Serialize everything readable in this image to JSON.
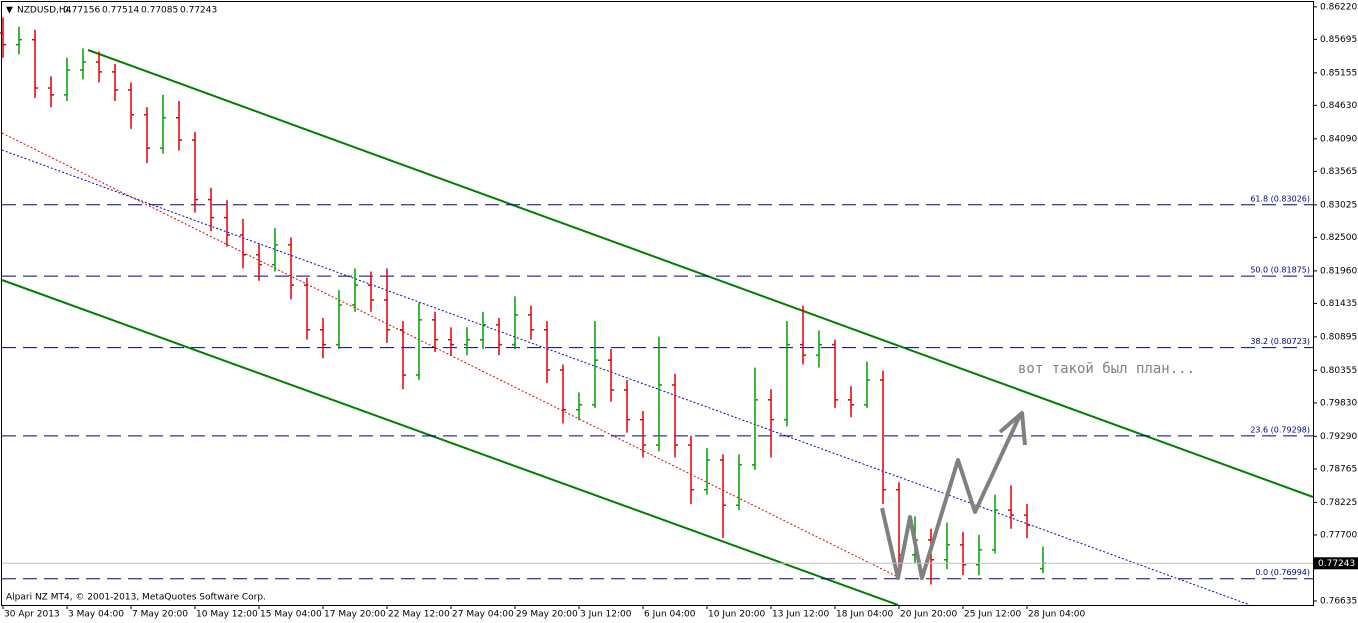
{
  "chart_data": {
    "type": "ohlc",
    "title": "NZDUSD,H4",
    "footer": "Alpari NZ MT4, © 2001-2013, MetaQuotes Software Corp.",
    "annotation": "вот такой был план...",
    "up_color": "#00a000",
    "down_color": "#e00000",
    "fib_color": "#00008b",
    "categories": [
      "30 Apr 2013",
      null,
      null,
      null,
      "3 May 04:00",
      null,
      null,
      null,
      "7 May 20:00",
      null,
      null,
      null,
      "10 May 12:00",
      null,
      null,
      null,
      "15 May 04:00",
      null,
      null,
      null,
      "17 May 20:00",
      null,
      null,
      null,
      "22 May 12:00",
      null,
      null,
      null,
      "27 May 04:00",
      null,
      null,
      null,
      "29 May 20:00",
      null,
      null,
      null,
      "3 Jun 12:00",
      null,
      null,
      null,
      "6 Jun 04:00",
      null,
      null,
      null,
      "10 Jun 20:00",
      null,
      null,
      null,
      "13 Jun 12:00",
      null,
      null,
      null,
      "18 Jun 04:00",
      null,
      null,
      null,
      "20 Jun 20:00",
      null,
      null,
      null,
      "25 Jun 12:00",
      null,
      null,
      null,
      "28 Jun 04:00",
      null
    ],
    "open": [
      0.858,
      0.8561,
      0.8569,
      0.8491,
      0.848,
      0.852,
      0.8533,
      0.8517,
      0.8488,
      0.8448,
      0.8394,
      0.8443,
      0.8407,
      0.8311,
      0.8282,
      0.8254,
      0.8222,
      0.8206,
      0.8238,
      0.8173,
      0.8101,
      0.8077,
      0.8141,
      0.8173,
      0.8149,
      0.8101,
      0.8028,
      0.8117,
      0.8085,
      0.8077,
      0.8085,
      0.8109,
      0.8077,
      0.8125,
      0.8101,
      0.8036,
      0.7972,
      0.798,
      0.8052,
      0.8004,
      0.7956,
      0.7915,
      0.8012,
      0.7915,
      0.7843,
      0.7891,
      0.7818,
      0.7883,
      0.7988,
      0.7956,
      0.8077,
      0.806,
      0.8077,
      0.7988,
      0.798,
      0.802,
      0.7843,
      0.7738,
      0.7762,
      0.773,
      0.7754,
      0.7722,
      0.7746,
      0.781,
      0.7802,
      0.77156
    ],
    "high": [
      0.8605,
      0.859,
      0.8585,
      0.851,
      0.854,
      0.8555,
      0.855,
      0.853,
      0.85,
      0.846,
      0.848,
      0.847,
      0.842,
      0.833,
      0.831,
      0.828,
      0.824,
      0.8265,
      0.825,
      0.8185,
      0.812,
      0.8165,
      0.82,
      0.8195,
      0.82,
      0.8115,
      0.8145,
      0.813,
      0.8105,
      0.8105,
      0.813,
      0.812,
      0.8155,
      0.814,
      0.8115,
      0.8045,
      0.8,
      0.8115,
      0.807,
      0.802,
      0.797,
      0.809,
      0.803,
      0.793,
      0.791,
      0.79,
      0.79,
      0.804,
      0.8005,
      0.8115,
      0.814,
      0.81,
      0.8085,
      0.801,
      0.805,
      0.8035,
      0.7855,
      0.78,
      0.778,
      0.779,
      0.7775,
      0.777,
      0.7835,
      0.785,
      0.782,
      0.77514
    ],
    "low": [
      0.854,
      0.8545,
      0.8475,
      0.846,
      0.847,
      0.8505,
      0.85,
      0.847,
      0.8425,
      0.837,
      0.8385,
      0.839,
      0.829,
      0.826,
      0.8235,
      0.82,
      0.818,
      0.8195,
      0.815,
      0.8085,
      0.8055,
      0.807,
      0.813,
      0.813,
      0.808,
      0.8005,
      0.802,
      0.8065,
      0.806,
      0.806,
      0.807,
      0.806,
      0.807,
      0.8085,
      0.8015,
      0.795,
      0.7955,
      0.7975,
      0.7985,
      0.7935,
      0.7895,
      0.7905,
      0.7895,
      0.782,
      0.7835,
      0.7765,
      0.781,
      0.7875,
      0.7895,
      0.7945,
      0.8045,
      0.804,
      0.7975,
      0.796,
      0.7975,
      0.782,
      0.771,
      0.7725,
      0.769,
      0.7715,
      0.7705,
      0.7705,
      0.774,
      0.778,
      0.7765,
      0.77085
    ],
    "close": [
      0.8561,
      0.8569,
      0.8491,
      0.848,
      0.852,
      0.8533,
      0.8517,
      0.8488,
      0.8448,
      0.8394,
      0.8443,
      0.8407,
      0.8311,
      0.8282,
      0.8254,
      0.8222,
      0.8206,
      0.8238,
      0.8173,
      0.8101,
      0.8077,
      0.8141,
      0.8173,
      0.8149,
      0.8101,
      0.8028,
      0.8117,
      0.8085,
      0.8077,
      0.8085,
      0.8109,
      0.8077,
      0.8125,
      0.8101,
      0.8036,
      0.7972,
      0.798,
      0.8052,
      0.8004,
      0.7956,
      0.7915,
      0.8012,
      0.7915,
      0.7843,
      0.7891,
      0.7818,
      0.7883,
      0.7988,
      0.7956,
      0.8077,
      0.806,
      0.8077,
      0.7988,
      0.798,
      0.802,
      0.7843,
      0.7738,
      0.7762,
      0.773,
      0.7754,
      0.7722,
      0.7746,
      0.781,
      0.7802,
      0.7786,
      0.77243
    ],
    "ylim": [
      0.7657,
      0.8633
    ],
    "yticks": [
      {
        "value": 0.8622,
        "label": "0.86220"
      },
      0.85695,
      0.85155,
      {
        "value": 0.8463,
        "label": "0.84630"
      },
      {
        "value": 0.8409,
        "label": "0.84090"
      },
      0.83565,
      0.83025,
      {
        "value": 0.825,
        "label": "0.82500"
      },
      {
        "value": 0.8196,
        "label": "0.81960"
      },
      0.81435,
      0.80895,
      0.80355,
      {
        "value": 0.7983,
        "label": "0.79830"
      },
      {
        "value": 0.7929,
        "label": "0.79290"
      },
      0.78765,
      0.78225,
      {
        "value": 0.777,
        "label": "0.77700"
      },
      0.76635
    ],
    "fib_levels": [
      {
        "value": 0.83026,
        "label": "61.8 (0.83026)"
      },
      {
        "value": 0.81875,
        "label": "50.0 (0.81875)"
      },
      {
        "value": 0.80723,
        "label": "38.2 (0.80723)"
      },
      {
        "value": 0.79298,
        "label": "23.6 (0.79298)"
      },
      {
        "value": 0.76994,
        "label": "0.0 (0.76994)"
      }
    ]
  }
}
